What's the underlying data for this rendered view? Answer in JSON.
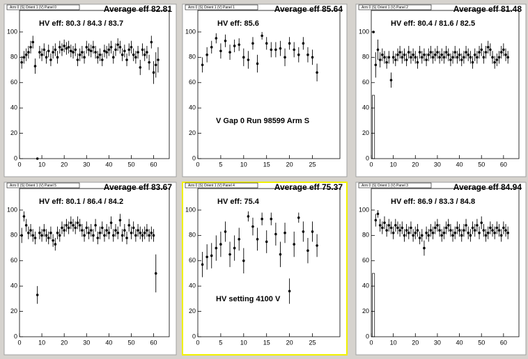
{
  "chart_data": [
    {
      "type": "scatter",
      "title": "Arm 0 (S) Orient 1 (V) Panel 0",
      "average": "Average eff 82.81",
      "hv_eff": "HV eff:   80.3 / 84.3 / 83.7",
      "xlim": [
        0,
        67
      ],
      "xticks": [
        0,
        10,
        20,
        30,
        40,
        50,
        60
      ],
      "ylim": [
        0,
        117
      ],
      "yticks": [
        0,
        20,
        40,
        60,
        80,
        100
      ],
      "x": [
        1,
        2,
        3,
        4,
        5,
        6,
        7,
        8,
        9,
        10,
        11,
        12,
        13,
        14,
        15,
        16,
        17,
        18,
        19,
        20,
        21,
        22,
        23,
        24,
        25,
        26,
        27,
        28,
        29,
        30,
        31,
        32,
        33,
        34,
        35,
        36,
        37,
        38,
        39,
        40,
        41,
        42,
        43,
        44,
        45,
        46,
        47,
        48,
        49,
        50,
        51,
        52,
        53,
        54,
        55,
        56,
        57,
        58,
        59,
        60,
        61,
        62
      ],
      "values": [
        76,
        80,
        82,
        84,
        88,
        92,
        73,
        0,
        84,
        82,
        86,
        80,
        85,
        78,
        84,
        86,
        80,
        88,
        86,
        89,
        87,
        88,
        85,
        84,
        86,
        78,
        82,
        84,
        80,
        88,
        86,
        85,
        88,
        84,
        80,
        82,
        78,
        85,
        84,
        86,
        88,
        80,
        86,
        90,
        88,
        82,
        85,
        78,
        86,
        88,
        82,
        80,
        84,
        72,
        86,
        82,
        84,
        76,
        92,
        68,
        74,
        78
      ],
      "errors": [
        5,
        5,
        5,
        5,
        5,
        5,
        6,
        0,
        5,
        5,
        5,
        5,
        5,
        5,
        5,
        5,
        5,
        5,
        5,
        5,
        5,
        5,
        5,
        5,
        5,
        5,
        5,
        5,
        5,
        5,
        5,
        5,
        5,
        5,
        5,
        5,
        5,
        5,
        5,
        5,
        5,
        5,
        5,
        5,
        5,
        5,
        5,
        5,
        5,
        5,
        5,
        5,
        5,
        6,
        5,
        5,
        5,
        6,
        5,
        9,
        10,
        10
      ]
    },
    {
      "type": "scatter",
      "title": "Arm 0 (S) Orient 1 (V) Panel 1",
      "average": "Average eff 85.64",
      "hv_eff": "HV eff:   85.6",
      "annotation": "V Gap 0 Run 98599 Arm S",
      "xlim": [
        0,
        31
      ],
      "xticks": [
        0,
        5,
        10,
        15,
        20,
        25
      ],
      "ylim": [
        0,
        117
      ],
      "yticks": [
        0,
        20,
        40,
        60,
        80,
        100
      ],
      "x": [
        1,
        2,
        3,
        4,
        5,
        6,
        7,
        8,
        9,
        10,
        11,
        12,
        13,
        14,
        15,
        16,
        17,
        18,
        19,
        20,
        21,
        22,
        23,
        24,
        25,
        26
      ],
      "values": [
        74,
        82,
        88,
        95,
        85,
        93,
        84,
        89,
        90,
        80,
        78,
        91,
        75,
        97,
        91,
        86,
        86,
        87,
        80,
        91,
        86,
        82,
        91,
        82,
        80,
        68
      ],
      "errors": [
        6,
        6,
        5,
        4,
        6,
        5,
        6,
        5,
        5,
        7,
        7,
        5,
        7,
        3,
        5,
        6,
        6,
        6,
        7,
        5,
        6,
        6,
        5,
        6,
        6,
        7
      ]
    },
    {
      "type": "scatter",
      "title": "Arm 0 (S) Orient 1 (V) Panel 2",
      "average": "Average eff 81.48",
      "hv_eff": "HV eff:   80.4 / 81.6 / 82.5",
      "xlim": [
        0,
        67
      ],
      "xticks": [
        0,
        10,
        20,
        30,
        40,
        50,
        60
      ],
      "ylim": [
        0,
        117
      ],
      "yticks": [
        0,
        20,
        40,
        60,
        80,
        100
      ],
      "boxes": [
        {
          "x": 1,
          "low": 0,
          "high": 50
        }
      ],
      "x": [
        1,
        2,
        3,
        4,
        5,
        6,
        7,
        8,
        9,
        10,
        11,
        12,
        13,
        14,
        15,
        16,
        17,
        18,
        19,
        20,
        21,
        22,
        23,
        24,
        25,
        26,
        27,
        28,
        29,
        30,
        31,
        32,
        33,
        34,
        35,
        36,
        37,
        38,
        39,
        40,
        41,
        42,
        43,
        44,
        45,
        46,
        47,
        48,
        49,
        50,
        51,
        52,
        53,
        54,
        55,
        56,
        57,
        58,
        59,
        60,
        61,
        62
      ],
      "values": [
        100,
        74,
        86,
        78,
        82,
        80,
        76,
        80,
        62,
        80,
        78,
        82,
        84,
        80,
        82,
        78,
        84,
        80,
        82,
        80,
        76,
        84,
        80,
        82,
        78,
        82,
        84,
        80,
        82,
        84,
        80,
        82,
        80,
        84,
        82,
        78,
        80,
        84,
        80,
        82,
        78,
        80,
        84,
        82,
        80,
        76,
        82,
        80,
        84,
        86,
        80,
        84,
        88,
        86,
        80,
        76,
        78,
        80,
        84,
        86,
        82,
        80
      ],
      "errors": [
        0,
        10,
        8,
        6,
        5,
        5,
        5,
        5,
        6,
        5,
        5,
        5,
        5,
        5,
        5,
        5,
        5,
        5,
        5,
        5,
        5,
        5,
        5,
        5,
        5,
        5,
        5,
        5,
        5,
        5,
        5,
        5,
        5,
        5,
        5,
        5,
        5,
        5,
        5,
        5,
        5,
        5,
        5,
        5,
        5,
        5,
        5,
        5,
        5,
        5,
        5,
        5,
        5,
        5,
        5,
        5,
        5,
        5,
        5,
        5,
        5,
        5
      ]
    },
    {
      "type": "scatter",
      "title": "Arm 0 (S) Orient 1 (V) Panel 5",
      "average": "Average eff 83.67",
      "hv_eff": "HV eff:   80.1 / 86.4 / 84.2",
      "xlim": [
        0,
        67
      ],
      "xticks": [
        0,
        10,
        20,
        30,
        40,
        50,
        60
      ],
      "ylim": [
        0,
        117
      ],
      "yticks": [
        0,
        20,
        40,
        60,
        80,
        100
      ],
      "x": [
        1,
        2,
        3,
        4,
        5,
        6,
        7,
        8,
        9,
        10,
        11,
        12,
        13,
        14,
        15,
        16,
        17,
        18,
        19,
        20,
        21,
        22,
        23,
        24,
        25,
        26,
        27,
        28,
        29,
        30,
        31,
        32,
        33,
        34,
        35,
        36,
        37,
        38,
        39,
        40,
        41,
        42,
        43,
        44,
        45,
        46,
        47,
        48,
        49,
        50,
        51,
        52,
        53,
        54,
        55,
        56,
        57,
        58,
        59,
        60,
        61
      ],
      "values": [
        80,
        95,
        88,
        82,
        84,
        80,
        78,
        33,
        82,
        80,
        84,
        80,
        78,
        82,
        76,
        73,
        82,
        80,
        86,
        84,
        88,
        86,
        90,
        88,
        86,
        90,
        88,
        84,
        80,
        86,
        82,
        84,
        80,
        88,
        78,
        82,
        86,
        80,
        84,
        82,
        90,
        80,
        84,
        82,
        92,
        80,
        84,
        78,
        88,
        82,
        86,
        80,
        84,
        82,
        80,
        82,
        84,
        80,
        82,
        80,
        50
      ],
      "errors": [
        6,
        4,
        5,
        5,
        5,
        5,
        5,
        7,
        5,
        5,
        5,
        5,
        5,
        5,
        5,
        5,
        5,
        5,
        5,
        5,
        5,
        5,
        5,
        5,
        5,
        5,
        5,
        5,
        5,
        5,
        5,
        5,
        5,
        5,
        5,
        5,
        5,
        5,
        5,
        5,
        5,
        5,
        5,
        5,
        5,
        5,
        5,
        5,
        5,
        5,
        5,
        5,
        5,
        5,
        5,
        5,
        5,
        5,
        5,
        5,
        15
      ]
    },
    {
      "type": "scatter",
      "title": "Arm 0 (S) Orient 1 (V) Panel 4",
      "average": "Average eff 75.37",
      "hv_eff": "HV eff:   75.4",
      "annotation": "HV setting 4100 V",
      "xlim": [
        0,
        31
      ],
      "xticks": [
        0,
        5,
        10,
        15,
        20,
        25
      ],
      "ylim": [
        0,
        117
      ],
      "yticks": [
        0,
        20,
        40,
        60,
        80,
        100
      ],
      "x": [
        1,
        2,
        3,
        4,
        5,
        6,
        7,
        8,
        9,
        10,
        11,
        12,
        13,
        14,
        15,
        16,
        17,
        18,
        19,
        20,
        21,
        22,
        23,
        24,
        25,
        26
      ],
      "values": [
        57,
        63,
        64,
        70,
        73,
        83,
        65,
        70,
        77,
        60,
        95,
        87,
        77,
        93,
        75,
        93,
        81,
        65,
        82,
        36,
        73,
        94,
        83,
        68,
        83,
        72
      ],
      "errors": [
        10,
        10,
        10,
        10,
        10,
        8,
        10,
        10,
        9,
        10,
        4,
        7,
        9,
        5,
        9,
        5,
        9,
        10,
        8,
        10,
        10,
        4,
        8,
        10,
        8,
        9
      ]
    },
    {
      "type": "scatter",
      "title": "Arm 0 (S) Orient 1 (V) Panel 3",
      "average": "Average eff 84.94",
      "hv_eff": "HV eff:   86.9 / 83.3 / 84.8",
      "xlim": [
        0,
        67
      ],
      "xticks": [
        0,
        10,
        20,
        30,
        40,
        50,
        60
      ],
      "ylim": [
        0,
        117
      ],
      "yticks": [
        0,
        20,
        40,
        60,
        80,
        100
      ],
      "boxes": [
        {
          "x": 1,
          "low": 0,
          "high": 50
        }
      ],
      "x": [
        2,
        3,
        4,
        5,
        6,
        7,
        8,
        9,
        10,
        11,
        12,
        13,
        14,
        15,
        16,
        17,
        18,
        19,
        20,
        21,
        22,
        23,
        24,
        25,
        26,
        27,
        28,
        29,
        30,
        31,
        32,
        33,
        34,
        35,
        36,
        37,
        38,
        39,
        40,
        41,
        42,
        43,
        44,
        45,
        46,
        47,
        48,
        49,
        50,
        51,
        52,
        53,
        54,
        55,
        56,
        57,
        58,
        59,
        60,
        61,
        62
      ],
      "values": [
        92,
        97,
        88,
        86,
        90,
        84,
        88,
        86,
        82,
        88,
        86,
        84,
        86,
        80,
        84,
        82,
        86,
        80,
        82,
        84,
        78,
        80,
        70,
        82,
        80,
        84,
        82,
        86,
        88,
        84,
        80,
        82,
        86,
        88,
        84,
        80,
        82,
        86,
        84,
        80,
        84,
        88,
        82,
        80,
        86,
        84,
        88,
        82,
        90,
        84,
        80,
        82,
        86,
        84,
        82,
        86,
        84,
        80,
        86,
        84,
        82
      ],
      "errors": [
        5,
        3,
        5,
        5,
        5,
        5,
        5,
        5,
        5,
        5,
        5,
        5,
        5,
        5,
        5,
        5,
        5,
        5,
        5,
        5,
        5,
        5,
        6,
        5,
        5,
        5,
        5,
        5,
        5,
        5,
        5,
        5,
        5,
        5,
        5,
        5,
        5,
        5,
        5,
        5,
        5,
        5,
        5,
        5,
        5,
        5,
        5,
        5,
        5,
        5,
        5,
        5,
        5,
        5,
        5,
        5,
        5,
        5,
        5,
        5,
        5
      ]
    }
  ]
}
